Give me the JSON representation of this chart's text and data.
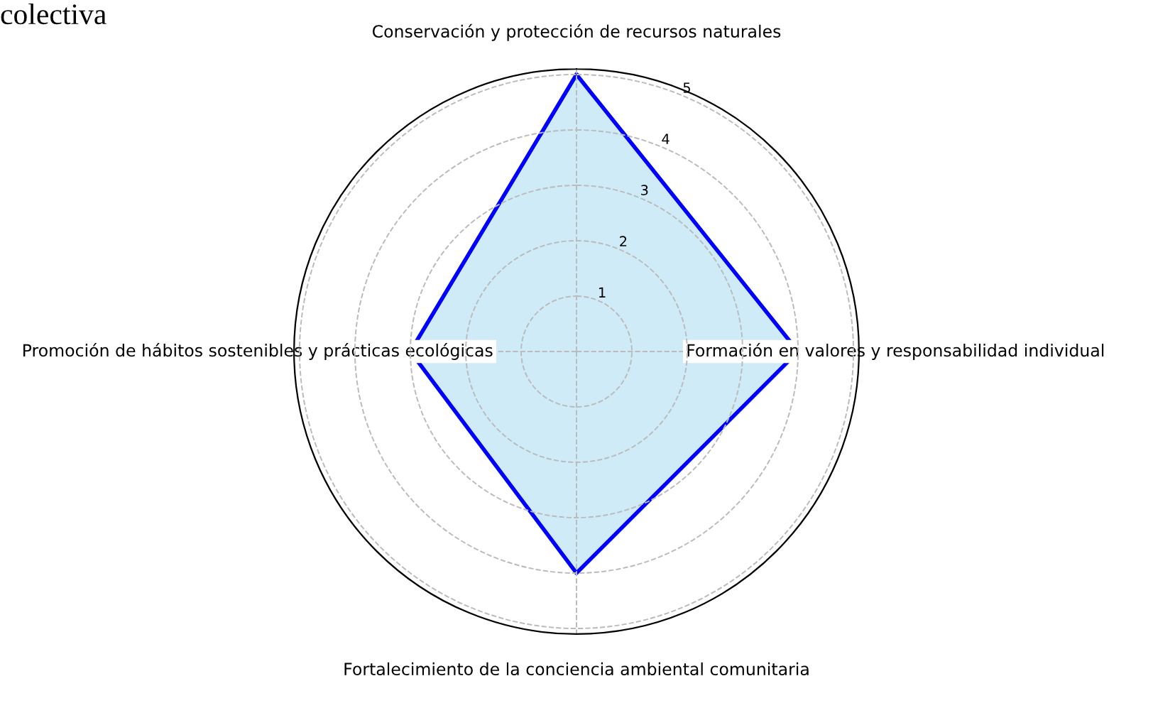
{
  "chart_data": {
    "type": "radar",
    "title": "colectiva",
    "categories": [
      "Conservación y protección de recursos naturales",
      "Formación en valores y responsabilidad individual",
      "Fortalecimiento de la conciencia ambiental comunitaria",
      "Promoción de hábitos sostenibles y prácticas ecológicas"
    ],
    "series": [
      {
        "color": "#0000ff",
        "values": [
          5,
          4,
          4,
          3
        ]
      }
    ],
    "ylim": [
      0,
      5.1
    ],
    "yticks": [
      1,
      2,
      3,
      4,
      5
    ],
    "grid": true,
    "line_style": "solid",
    "marker": "none"
  }
}
